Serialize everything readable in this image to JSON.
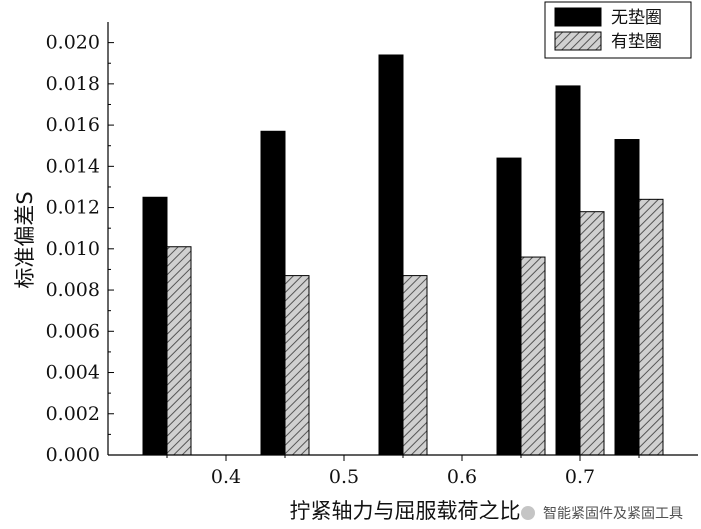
{
  "chart_data": {
    "type": "bar",
    "title": "",
    "xlabel": "拧紧轴力与屈服载荷之比",
    "ylabel": "标准偏差S",
    "ylim": [
      0,
      0.021
    ],
    "xlim": [
      0.3,
      0.8
    ],
    "x_ticks": [
      "0.4",
      "0.5",
      "0.6",
      "0.7"
    ],
    "y_ticks": [
      "0.000",
      "0.002",
      "0.004",
      "0.006",
      "0.008",
      "0.010",
      "0.012",
      "0.014",
      "0.016",
      "0.018",
      "0.020"
    ],
    "legend_position": "top-right",
    "grid": false,
    "series": [
      {
        "name": "无垫圈",
        "color": "#000000",
        "pattern": "solid",
        "x": [
          0.35,
          0.45,
          0.55,
          0.65,
          0.7,
          0.75
        ],
        "values": [
          0.0125,
          0.0157,
          0.0194,
          0.0144,
          0.0179,
          0.0153
        ]
      },
      {
        "name": "有垫圈",
        "color": "#b0b0b0",
        "pattern": "hatch",
        "x": [
          0.35,
          0.45,
          0.55,
          0.65,
          0.7,
          0.75
        ],
        "values": [
          0.0101,
          0.0087,
          0.0087,
          0.0096,
          0.0118,
          0.0124
        ]
      }
    ]
  },
  "watermark": {
    "text": "智能紧固件及紧固工具",
    "icon": "wechat-icon"
  }
}
